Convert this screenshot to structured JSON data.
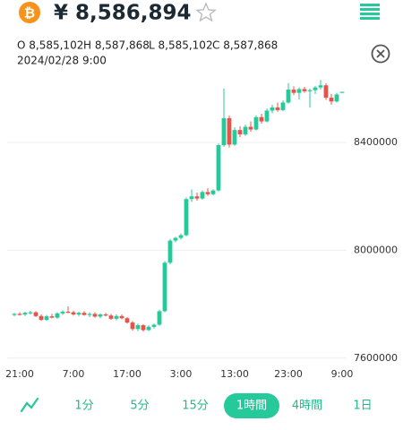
{
  "header": {
    "price": "¥ 8,586,894",
    "ohlc": [
      "O 8,585,102",
      "H 8,587,868",
      "L 8,585,102",
      "C 8,587,868"
    ],
    "datetime": "2024/02/28 9:00"
  },
  "tabs": {
    "items": [
      "1分",
      "5分",
      "15分",
      "1時間",
      "4時間",
      "1日"
    ],
    "selected": 3
  },
  "chart_data": {
    "type": "candlestick",
    "categories": [
      null,
      "21:00",
      null,
      null,
      null,
      null,
      null,
      null,
      null,
      null,
      null,
      "7:00",
      null,
      null,
      null,
      null,
      null,
      null,
      null,
      null,
      null,
      "17:00",
      null,
      null,
      null,
      null,
      null,
      null,
      null,
      null,
      null,
      "3:00",
      null,
      null,
      null,
      null,
      null,
      null,
      null,
      null,
      null,
      "13:00",
      null,
      null,
      null,
      null,
      null,
      null,
      null,
      null,
      null,
      "23:00",
      null,
      null,
      null,
      null,
      null,
      null,
      null,
      null,
      null,
      "9:00"
    ],
    "open": [
      7760000,
      7764000,
      7762000,
      7768000,
      7770000,
      7756000,
      7742000,
      7755000,
      7750000,
      7766000,
      7772000,
      7770000,
      7762000,
      7768000,
      7760000,
      7764000,
      7754000,
      7762000,
      7758000,
      7746000,
      7756000,
      7748000,
      7732000,
      7708000,
      7722000,
      7704000,
      7716000,
      7724000,
      7774000,
      7954000,
      8036000,
      8046000,
      8056000,
      8190000,
      8200000,
      8192000,
      8216000,
      8208000,
      8222000,
      8390000,
      8490000,
      8392000,
      8446000,
      8430000,
      8458000,
      8448000,
      8494000,
      8478000,
      8518000,
      8530000,
      8520000,
      8548000,
      8596000,
      8584000,
      8598000,
      8590000,
      8594000,
      8604000,
      8612000,
      8566000,
      8552000,
      8585102
    ],
    "high": [
      7768000,
      7770000,
      7772000,
      7775000,
      7774000,
      7762000,
      7760000,
      7764000,
      7770000,
      7778000,
      7792000,
      7776000,
      7772000,
      7774000,
      7770000,
      7770000,
      7766000,
      7768000,
      7764000,
      7762000,
      7762000,
      7752000,
      7738000,
      7728000,
      7726000,
      7722000,
      7728000,
      7780000,
      7960000,
      8042000,
      8050000,
      8062000,
      8196000,
      8226000,
      8214000,
      8222000,
      8230000,
      8226000,
      8396000,
      8600000,
      8500000,
      8456000,
      8460000,
      8466000,
      8478000,
      8500000,
      8506000,
      8526000,
      8540000,
      8548000,
      8556000,
      8620000,
      8608000,
      8604000,
      8606000,
      8600000,
      8610000,
      8632000,
      8620000,
      8580000,
      8584000,
      8587868
    ],
    "low": [
      7755000,
      7758000,
      7756000,
      7762000,
      7752000,
      7738000,
      7738000,
      7748000,
      7746000,
      7760000,
      7768000,
      7758000,
      7756000,
      7758000,
      7752000,
      7750000,
      7748000,
      7755000,
      7742000,
      7740000,
      7744000,
      7728000,
      7702000,
      7700000,
      7698000,
      7700000,
      7710000,
      7720000,
      7770000,
      7948000,
      8030000,
      8040000,
      8052000,
      8180000,
      8184000,
      8188000,
      8202000,
      8204000,
      8218000,
      8384000,
      8382000,
      8388000,
      8420000,
      8424000,
      8440000,
      8444000,
      8470000,
      8474000,
      8508000,
      8514000,
      8516000,
      8544000,
      8576000,
      8560000,
      8584000,
      8530000,
      8580000,
      8596000,
      8558000,
      8540000,
      8548000,
      8585102
    ],
    "close": [
      7764000,
      7762000,
      7768000,
      7770000,
      7756000,
      7742000,
      7755000,
      7750000,
      7766000,
      7772000,
      7770000,
      7762000,
      7768000,
      7760000,
      7764000,
      7754000,
      7762000,
      7758000,
      7746000,
      7756000,
      7748000,
      7732000,
      7708000,
      7722000,
      7704000,
      7716000,
      7724000,
      7774000,
      7954000,
      8036000,
      8046000,
      8056000,
      8190000,
      8200000,
      8192000,
      8216000,
      8208000,
      8222000,
      8390000,
      8490000,
      8392000,
      8446000,
      8430000,
      8458000,
      8448000,
      8494000,
      8478000,
      8518000,
      8530000,
      8520000,
      8548000,
      8596000,
      8584000,
      8598000,
      8590000,
      8594000,
      8604000,
      8612000,
      8566000,
      8552000,
      8578000,
      8587868
    ],
    "up_color": "#26c99a",
    "down_color": "#e5544b",
    "ylim": [
      7566000,
      8646000
    ],
    "yticks": [
      7600000,
      8000000,
      8400000
    ],
    "grid": true
  }
}
